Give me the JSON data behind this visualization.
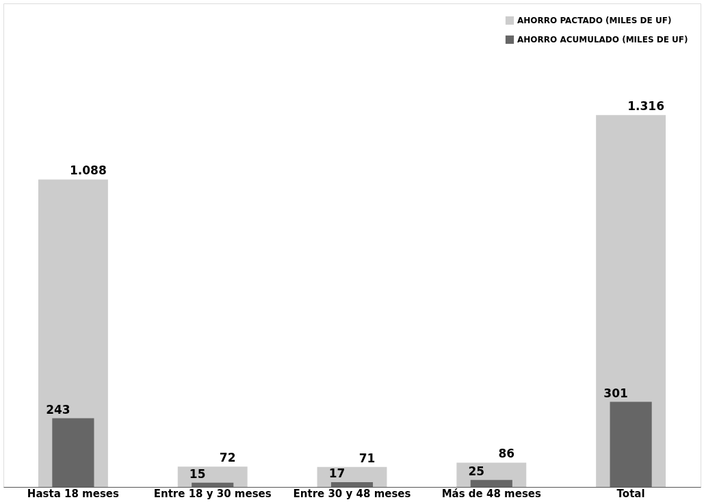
{
  "chart_data": {
    "type": "bar",
    "categories": [
      "Hasta 18 meses",
      "Entre 18 y 30 meses",
      "Entre 30 y 48 meses",
      "Más de 48 meses",
      "Total"
    ],
    "series": [
      {
        "name": "AHORRO PACTADO (MILES DE UF)",
        "color": "#cccccc",
        "values": [
          1088,
          72,
          71,
          86,
          1316
        ],
        "value_labels": [
          "1.088",
          "72",
          "71",
          "86",
          "1.316"
        ]
      },
      {
        "name": "AHORRO ACUMULADO (MILES DE UF)",
        "color": "#666666",
        "values": [
          243,
          15,
          17,
          25,
          301
        ],
        "value_labels": [
          "243",
          "15",
          "17",
          "25",
          "301"
        ]
      }
    ],
    "legend": "top right",
    "grid": false
  }
}
